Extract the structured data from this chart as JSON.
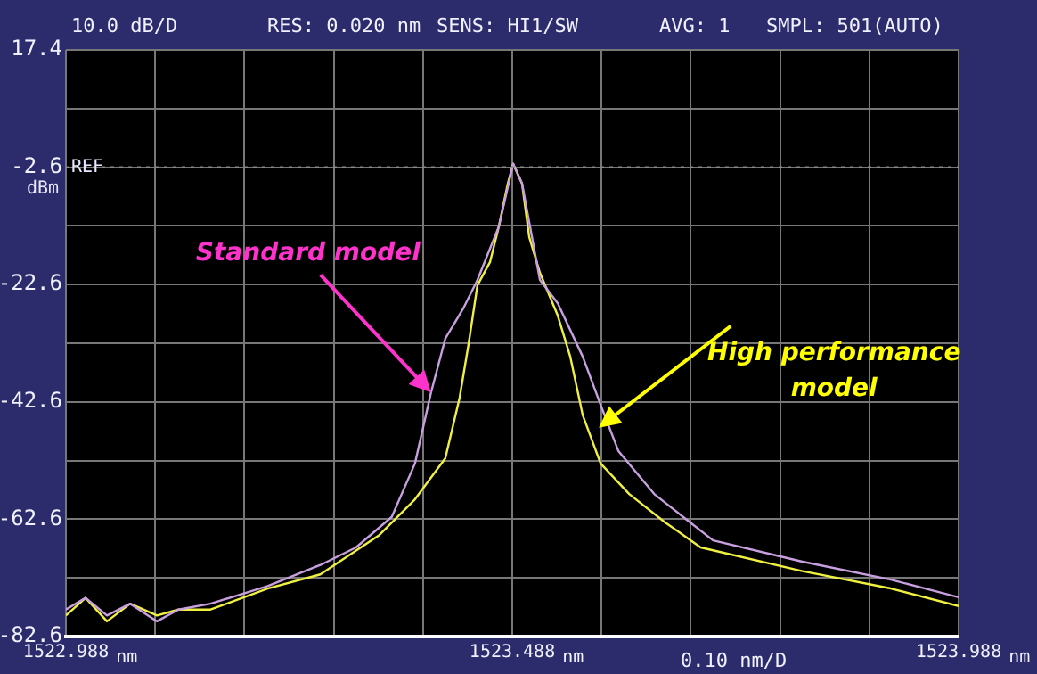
{
  "chart_data": {
    "type": "line",
    "xlabel": "nm",
    "ylabel": "dBm",
    "xlim": [
      1522.988,
      1523.988
    ],
    "xticks": [
      1522.988,
      {
        "value": 1523.088,
        "label": null
      },
      {
        "value": 1523.188,
        "label": null
      },
      {
        "value": 1523.288,
        "label": null
      },
      {
        "value": 1523.388,
        "label": null
      },
      1523.488,
      {
        "value": 1523.588,
        "label": null
      },
      {
        "value": 1523.688,
        "label": null
      },
      {
        "value": 1523.788,
        "label": null
      },
      {
        "value": 1523.888,
        "label": null
      },
      1523.988
    ],
    "ylim": [
      -82.6,
      17.4
    ],
    "yticks": [
      -82.6,
      {
        "value": -72.6,
        "label": null
      },
      -62.6,
      {
        "value": -52.6,
        "label": null
      },
      -42.6,
      {
        "value": -32.6,
        "label": null
      },
      -22.6,
      {
        "value": -12.6,
        "label": null
      },
      -2.6,
      {
        "value": 7.4,
        "label": null
      },
      17.4
    ],
    "grid": true,
    "legend": false,
    "marker": "none",
    "line_style": "solid",
    "ref_lines": [
      {
        "axis": "y",
        "value": -2.6,
        "label": "REF"
      }
    ],
    "annotations": [
      "10.0 dB/D",
      "RES: 0.020 nm",
      "SENS: HI1/SW",
      "AVG: 1",
      "SMPL: 501(AUTO)",
      "0.10 nm/D",
      {
        "text": "Standard model",
        "x": 1523.397,
        "y": -41
      },
      {
        "text": "High performance model",
        "x": 1523.585,
        "y": -47
      }
    ],
    "series": [
      {
        "color": "#c8a0e0",
        "x": [
          1522.988,
          1523.01,
          1523.034,
          1523.06,
          1523.09,
          1523.114,
          1523.15,
          1523.214,
          1523.273,
          1523.313,
          1523.353,
          1523.379,
          1523.397,
          1523.413,
          1523.433,
          1523.449,
          1523.473,
          1523.489,
          1523.499,
          1523.519,
          1523.539,
          1523.567,
          1523.587,
          1523.607,
          1523.647,
          1523.687,
          1523.713,
          1523.812,
          1523.912,
          1523.988
        ],
        "values": [
          -78,
          -76,
          -79,
          -77,
          -80,
          -78,
          -77,
          -74,
          -70.4,
          -67.4,
          -62.2,
          -53.1,
          -41,
          -31.8,
          -26.7,
          -21.8,
          -12.7,
          -2,
          -5.4,
          -21.8,
          -25.8,
          -34.9,
          -43.1,
          -51,
          -58.3,
          -63.1,
          -66.2,
          -69.8,
          -72.9,
          -75.9
        ]
      },
      {
        "color": "#f0f040",
        "x": [
          1522.988,
          1523.01,
          1523.034,
          1523.06,
          1523.09,
          1523.114,
          1523.15,
          1523.214,
          1523.273,
          1523.339,
          1523.379,
          1523.413,
          1523.429,
          1523.439,
          1523.449,
          1523.463,
          1523.473,
          1523.483,
          1523.489,
          1523.499,
          1523.507,
          1523.519,
          1523.539,
          1523.553,
          1523.567,
          1523.587,
          1523.619,
          1523.659,
          1523.699,
          1523.812,
          1523.912,
          1523.988
        ],
        "values": [
          -79,
          -76,
          -80,
          -77,
          -79,
          -78,
          -78,
          -74.4,
          -72,
          -65.3,
          -59.2,
          -52.2,
          -41.9,
          -32.8,
          -22.7,
          -18.8,
          -12.7,
          -5.4,
          -2,
          -5.4,
          -14.5,
          -20.6,
          -27.9,
          -34.9,
          -44.9,
          -53.1,
          -58.3,
          -63.1,
          -67.4,
          -71.4,
          -74.4,
          -77.4
        ]
      }
    ]
  }
}
